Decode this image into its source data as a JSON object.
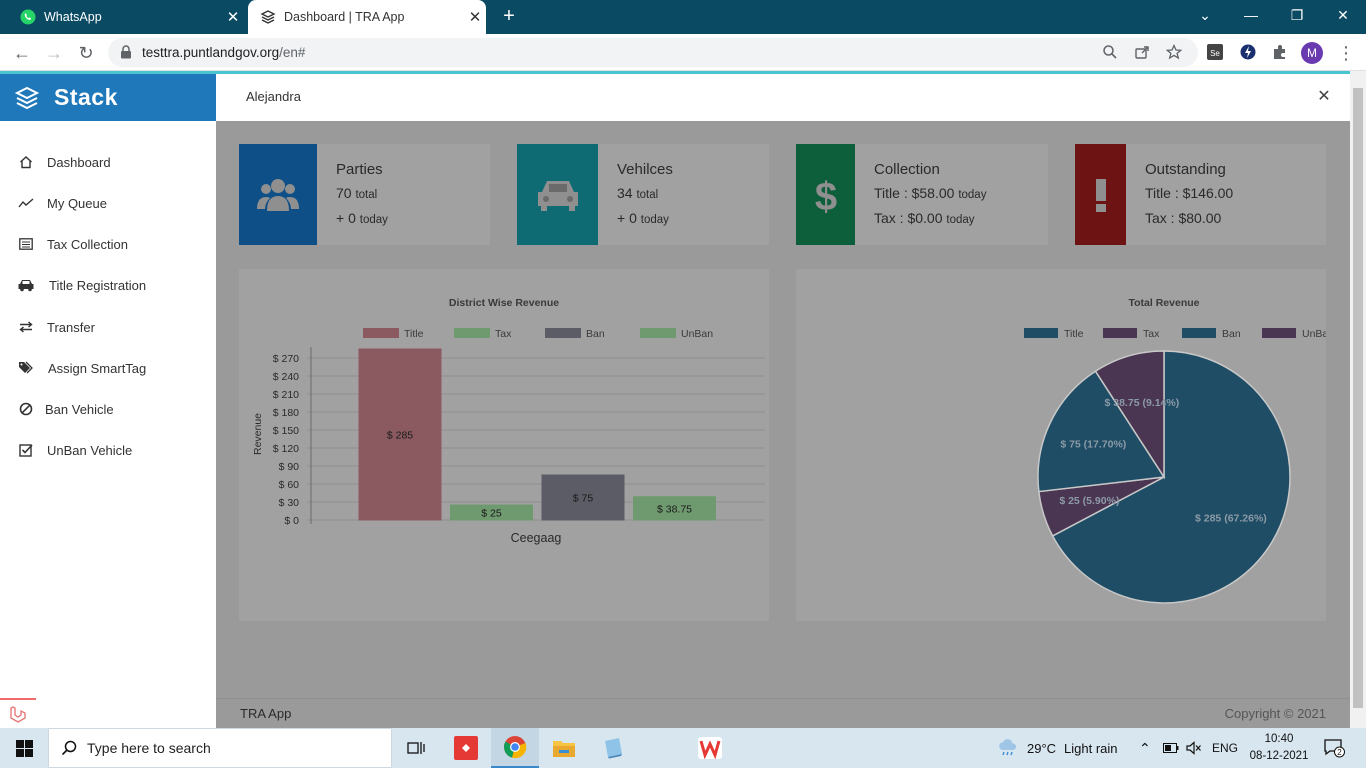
{
  "browser": {
    "tabs": [
      {
        "title": "WhatsApp"
      },
      {
        "title": "Dashboard | TRA App"
      }
    ],
    "url_host": "testtra.puntlandgov.org",
    "url_path": "/en#",
    "profile_initial": "M"
  },
  "app": {
    "brand": "Stack",
    "search_value": "Alejandra",
    "menu": [
      {
        "label": "Dashboard",
        "icon": "home-icon"
      },
      {
        "label": "My Queue",
        "icon": "trend-icon"
      },
      {
        "label": "Tax Collection",
        "icon": "list-icon"
      },
      {
        "label": "Title Registration",
        "icon": "car-icon"
      },
      {
        "label": "Transfer",
        "icon": "transfer-icon"
      },
      {
        "label": "Assign SmartTag",
        "icon": "tags-icon"
      },
      {
        "label": "Ban Vehicle",
        "icon": "ban-icon"
      },
      {
        "label": "UnBan Vehicle",
        "icon": "check-square-icon"
      }
    ],
    "cards": [
      {
        "title": "Parties",
        "line1": "70",
        "line1_small": "total",
        "line2": "+ 0",
        "line2_small": "today",
        "color": "#0d4f86"
      },
      {
        "title": "Vehilces",
        "line1": "34",
        "line1_small": "total",
        "line2": "+ 0",
        "line2_small": "today",
        "color": "#0e6b73"
      },
      {
        "title": "Collection",
        "line1": "Title : $58.00",
        "line1_small": "today",
        "line2": "Tax : $0.00",
        "line2_small": "today",
        "color": "#0d5f3c"
      },
      {
        "title": "Outstanding",
        "line1": "Title : $146.00",
        "line1_small": "",
        "line2": "Tax : $80.00",
        "line2_small": "",
        "color": "#6d1313"
      }
    ],
    "footer_left": "TRA App",
    "footer_right": "Copyright © 2021"
  },
  "chart_data": [
    {
      "type": "bar",
      "title": "District Wise Revenue",
      "categories": [
        "Ceegaag"
      ],
      "series": [
        {
          "name": "Title",
          "values": [
            285
          ],
          "label": "$ 285",
          "color": "#8a5a60"
        },
        {
          "name": "Tax",
          "values": [
            25
          ],
          "label": "$ 25",
          "color": "#6f9a6f"
        },
        {
          "name": "Ban",
          "values": [
            75
          ],
          "label": "$ 75",
          "color": "#5c5c66"
        },
        {
          "name": "UnBan",
          "values": [
            38.75
          ],
          "label": "$ 38.75",
          "color": "#6f9a6f"
        }
      ],
      "ylabel": "Revenue",
      "xlabel": "Ceegaag",
      "yticks": [
        "$ 270",
        "$ 240",
        "$ 210",
        "$ 180",
        "$ 150",
        "$ 120",
        "$ 90",
        "$ 60",
        "$ 30",
        "$ 0"
      ],
      "ytick_values": [
        270,
        240,
        210,
        180,
        150,
        120,
        90,
        60,
        30,
        0
      ],
      "ylim": [
        0,
        285
      ],
      "legend": "top"
    },
    {
      "type": "pie",
      "title": "Total Revenue",
      "slices": [
        {
          "name": "Title",
          "value": 285,
          "label": "$ 285  (67.26%)",
          "color": "#1f4d66"
        },
        {
          "name": "Tax",
          "value": 25,
          "label": "$ 25  (5.90%)",
          "color": "#4a3552"
        },
        {
          "name": "Ban",
          "value": 75,
          "label": "$ 75  (17.70%)",
          "color": "#1f4d66"
        },
        {
          "name": "UnBan",
          "value": 38.75,
          "label": "$ 38.75  (9.14%)",
          "color": "#4a3552"
        }
      ],
      "legend": "top"
    }
  ],
  "taskbar": {
    "search_placeholder": "Type here to search",
    "weather_temp": "29°C",
    "weather_text": "Light rain",
    "lang": "ENG",
    "time": "10:40",
    "date": "08-12-2021",
    "notif_count": "2"
  }
}
